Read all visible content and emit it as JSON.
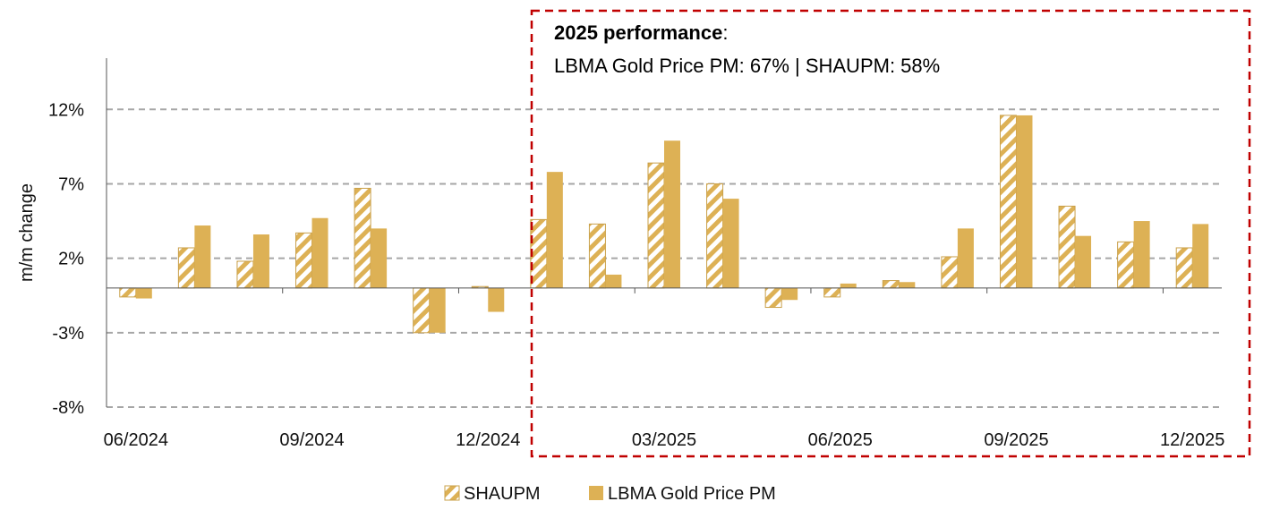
{
  "chart_data": {
    "type": "bar",
    "ylabel": "m/m change",
    "ylim": [
      -8,
      14
    ],
    "y_ticks": [
      12,
      7,
      2,
      -3,
      -8
    ],
    "y_tick_labels": [
      "12%",
      "7%",
      "2%",
      "-3%",
      "-8%"
    ],
    "grid": "dashed horizontal",
    "categories": [
      "06/2024",
      "07/2024",
      "08/2024",
      "09/2024",
      "10/2024",
      "11/2024",
      "12/2024",
      "01/2025",
      "02/2025",
      "03/2025",
      "04/2025",
      "05/2025",
      "06/2025",
      "07/2025",
      "08/2025",
      "09/2025",
      "10/2025",
      "11/2025",
      "12/2025"
    ],
    "x_tick_labels": [
      "06/2024",
      "09/2024",
      "12/2024",
      "03/2025",
      "06/2025",
      "09/2025",
      "12/2025"
    ],
    "series": [
      {
        "name": "SHAUPM",
        "values": [
          -0.6,
          2.7,
          1.8,
          3.7,
          6.7,
          -3.0,
          0.1,
          4.6,
          4.3,
          8.4,
          7.0,
          -1.3,
          -0.6,
          0.5,
          2.1,
          11.6,
          5.5,
          3.1,
          2.7
        ]
      },
      {
        "name": "LBMA Gold Price PM",
        "values": [
          -0.7,
          4.2,
          3.6,
          4.7,
          4.0,
          -3.0,
          -1.6,
          7.8,
          0.9,
          9.9,
          6.0,
          -0.8,
          0.3,
          0.4,
          4.0,
          11.6,
          3.5,
          4.5,
          4.3
        ]
      }
    ],
    "legend_position": "bottom-center",
    "annotation": {
      "title": "2025 performance",
      "title_suffix": ":",
      "text": "LBMA Gold Price PM: 67% | SHAUPM: 58%"
    }
  },
  "colors": {
    "gold": "#DDB155",
    "gold_stroke": "#C9A04A",
    "grid": "#A6A6A6",
    "highlight_box": "#C00000",
    "axis": "#555555"
  }
}
